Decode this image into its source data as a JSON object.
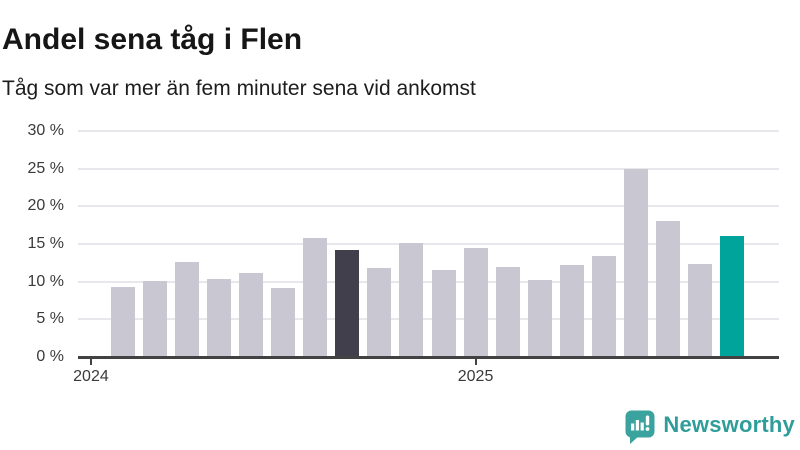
{
  "chart_data": {
    "type": "bar",
    "title": "Andel sena tåg i Flen",
    "subtitle": "Tåg som var mer än fem minuter sena vid ankomst",
    "unit": "%",
    "categories": [
      "feb 2024",
      "mar 2024",
      "apr 2024",
      "maj 2024",
      "jun 2024",
      "jul 2024",
      "aug 2024",
      "sep 2024",
      "okt 2024",
      "nov 2024",
      "dec 2024",
      "jan 2025",
      "feb 2025",
      "mar 2025",
      "apr 2025",
      "maj 2025",
      "jun 2025",
      "jul 2025",
      "aug 2025",
      "sep 2025"
    ],
    "values": [
      9.3,
      10.1,
      12.6,
      10.4,
      11.2,
      9.1,
      15.8,
      14.2,
      11.8,
      15.1,
      11.5,
      14.5,
      12.0,
      10.2,
      12.2,
      13.4,
      25.0,
      18.1,
      12.3,
      16.0
    ],
    "ylim": [
      0,
      30
    ],
    "grid": true,
    "legend": "none",
    "y_ticks": [
      {
        "value": 0,
        "label": "0 %"
      },
      {
        "value": 5,
        "label": "5 %"
      },
      {
        "value": 10,
        "label": "10 %"
      },
      {
        "value": 15,
        "label": "15 %"
      },
      {
        "value": 20,
        "label": "20 %"
      },
      {
        "value": 25,
        "label": "25 %"
      },
      {
        "value": 30,
        "label": "30 %"
      }
    ],
    "x_ticks": [
      {
        "label": "2024",
        "month_offset": -1
      },
      {
        "label": "2025",
        "month_offset": 11
      }
    ],
    "bar_color_default": "#c9c7d2",
    "bar_color_overrides": {
      "7": "#423f4d",
      "19": "#00a49a"
    }
  },
  "colors": {
    "axis": "#424242",
    "grid": "#e8e7eb",
    "tick_label": "#3a3a3a",
    "title": "#161616",
    "accent_teal": "#00a49a",
    "dark_highlight": "#423f4d",
    "brand_teal": "#2f9d99"
  },
  "footer": {
    "brand": "Newsworthy",
    "logo_icon": "newsworthy-speech-bubble-chart-icon"
  }
}
